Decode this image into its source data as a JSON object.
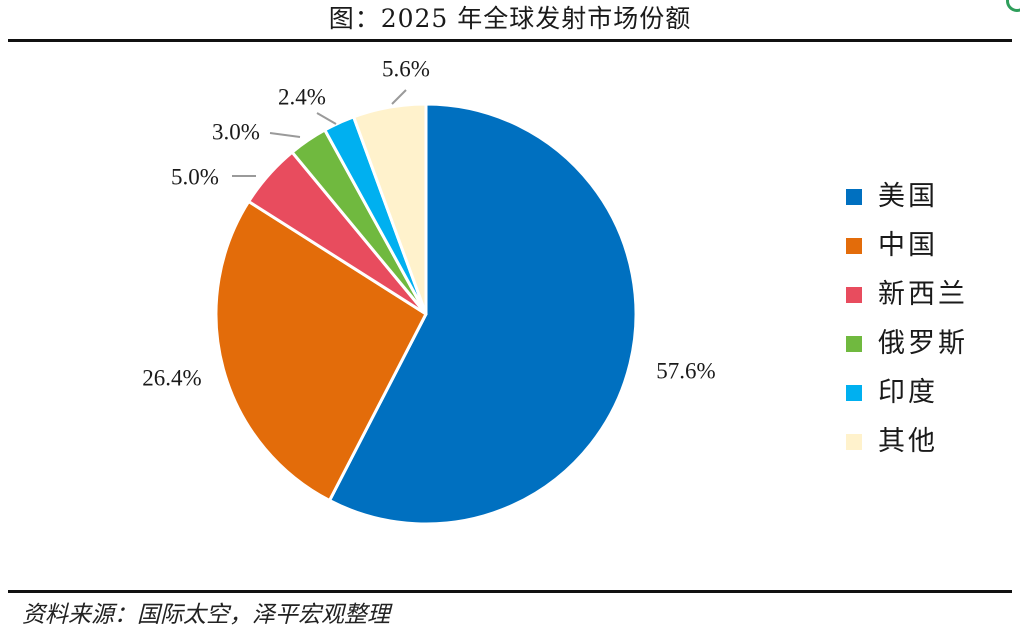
{
  "title": "图：2025 年全球发射市场份额",
  "source": "资料来源：国际太空，泽平宏观整理",
  "chart_data": {
    "type": "pie",
    "title": "图：2025 年全球发射市场份额",
    "legend_position": "right",
    "slices": [
      {
        "name": "美国",
        "value": 57.6,
        "label": "57.6%",
        "color": "#0070C0"
      },
      {
        "name": "中国",
        "value": 26.4,
        "label": "26.4%",
        "color": "#E36C0A"
      },
      {
        "name": "新西兰",
        "value": 5.0,
        "label": "5.0%",
        "color": "#E84C5E"
      },
      {
        "name": "俄罗斯",
        "value": 3.0,
        "label": "3.0%",
        "color": "#70B93F"
      },
      {
        "name": "印度",
        "value": 2.4,
        "label": "2.4%",
        "color": "#00B0F0"
      },
      {
        "name": "其他",
        "value": 5.6,
        "label": "5.6%",
        "color": "#FFF2CC"
      }
    ]
  }
}
